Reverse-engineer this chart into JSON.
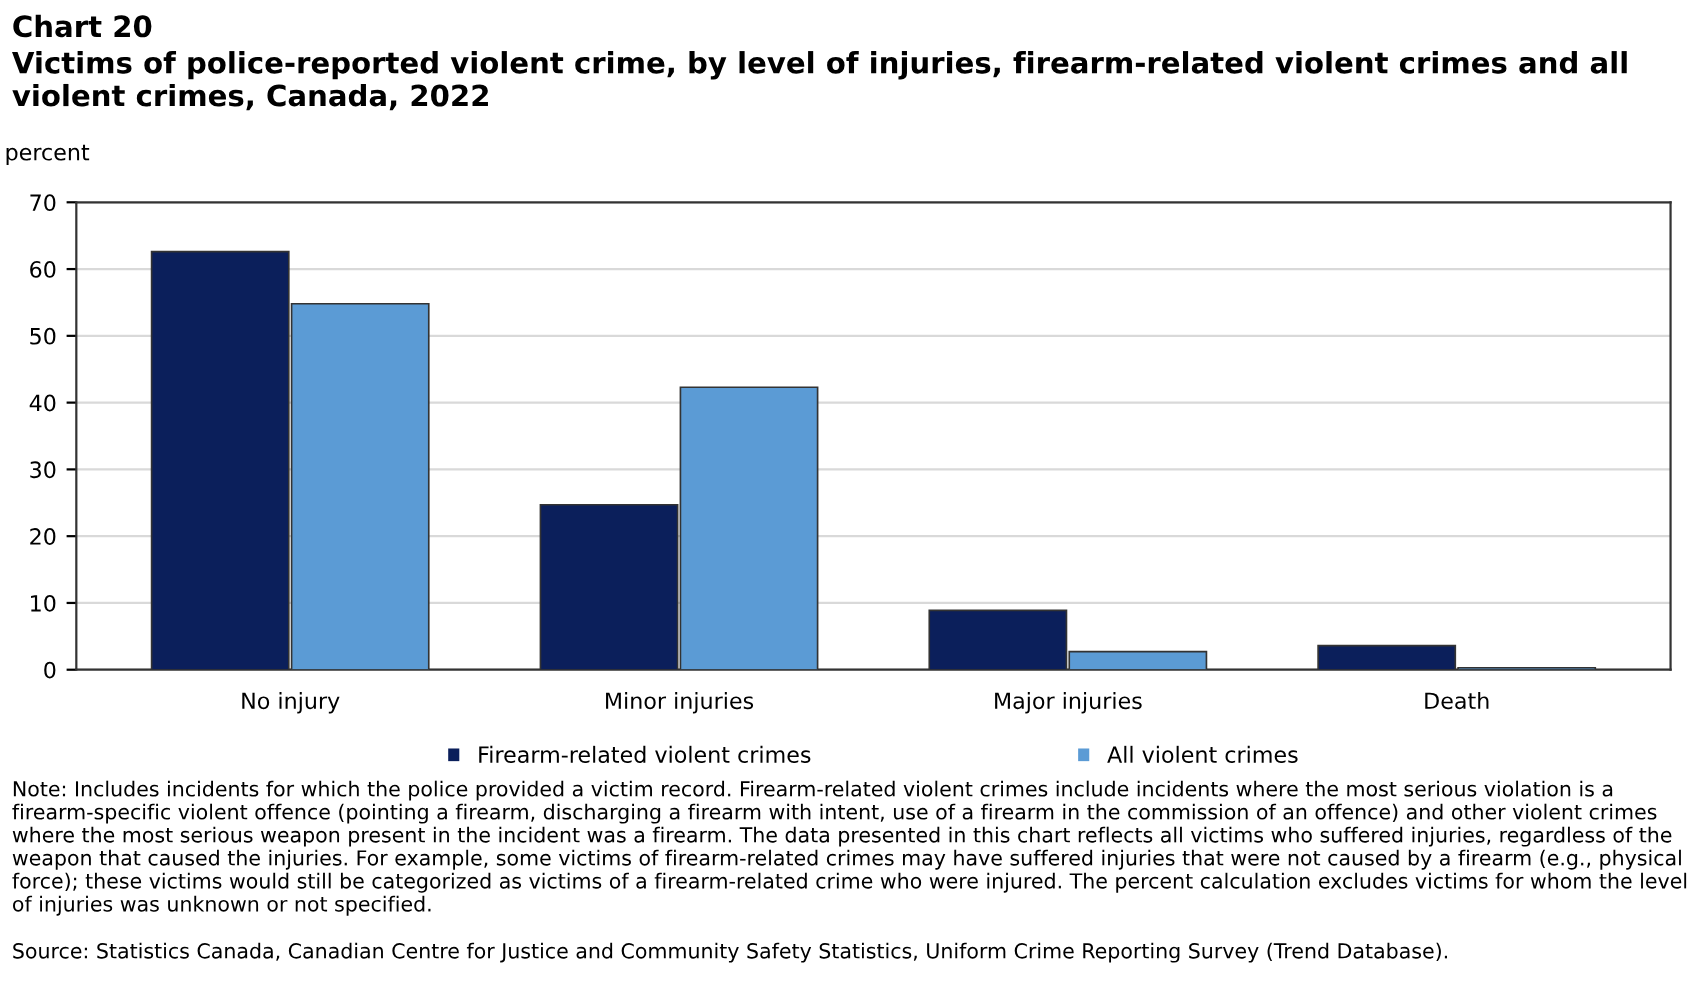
{
  "chart_data": {
    "type": "bar",
    "title": "Chart 20",
    "subtitle": "Victims of police-reported violent crime, by level of injuries, firearm-related violent crimes and all violent crimes, Canada, 2022",
    "ylabel": "percent",
    "categories": [
      "No injury",
      "Minor injuries",
      "Major injuries",
      "Death"
    ],
    "series": [
      {
        "name": "Firearm-related violent crimes",
        "color": "#0b1f5b",
        "values": [
          62.6,
          24.7,
          8.9,
          3.6
        ]
      },
      {
        "name": "All violent crimes",
        "color": "#5b9bd5",
        "values": [
          54.8,
          42.3,
          2.7,
          0.3
        ]
      }
    ],
    "ylim": [
      0,
      70
    ],
    "yticks": [
      0,
      10,
      20,
      30,
      40,
      50,
      60,
      70
    ],
    "grid": "y",
    "legend": "bottom",
    "annotations": [
      "Note: Includes incidents for which the police provided a victim record. Firearm-related violent crimes include incidents where the most serious violation is a firearm-specific violent offence (pointing a firearm, discharging a firearm with intent, use of a firearm in the commission of an offence) and other violent crimes where the most serious weapon present in the incident was a firearm. The data presented in this chart reflects all victims who suffered injuries, regardless of the weapon that caused the injuries. For example, some victims of firearm-related crimes may have suffered injuries that were not caused by a firearm (e.g., physical force); these victims would still be categorized as victims of a firearm-related crime who were injured. The percent calculation excludes victims for whom the level of injuries was unknown or not specified.",
      "Source: Statistics Canada, Canadian Centre for Justice and Community Safety Statistics, Uniform Crime Reporting Survey (Trend Database)."
    ]
  }
}
